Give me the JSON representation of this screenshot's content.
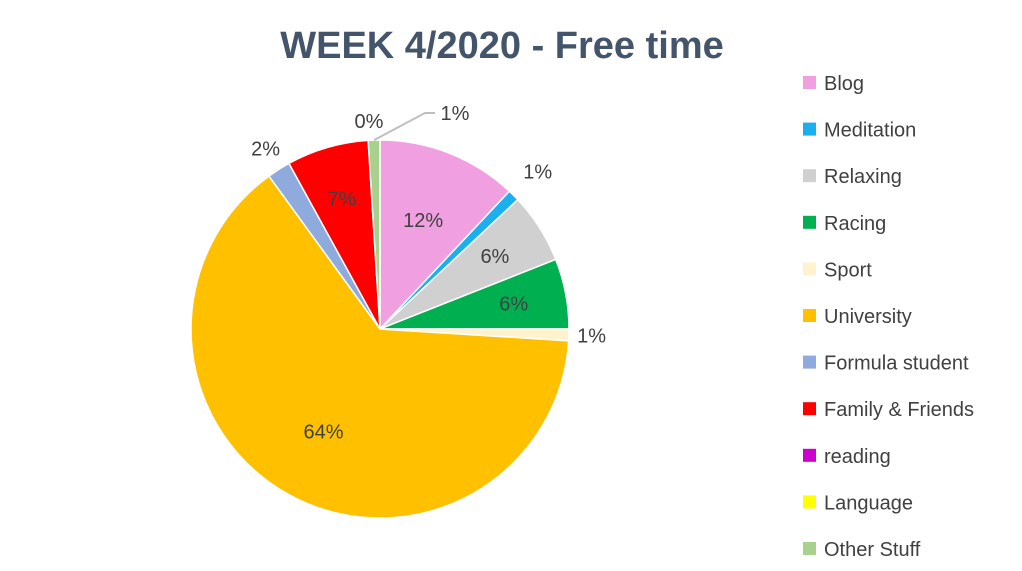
{
  "chart_data": {
    "type": "pie",
    "title": "WEEK 4/2020 - Free time",
    "slices": [
      {
        "name": "Blog",
        "value": 12,
        "label": "12%",
        "color": "#f0a0e0"
      },
      {
        "name": "Meditation",
        "value": 1,
        "label": "1%",
        "color": "#1ab0f0"
      },
      {
        "name": "Relaxing",
        "value": 6,
        "label": "6%",
        "color": "#d0d0d0"
      },
      {
        "name": "Racing",
        "value": 6,
        "label": "6%",
        "color": "#00b050"
      },
      {
        "name": "Sport",
        "value": 1,
        "label": "1%",
        "color": "#fff2cc"
      },
      {
        "name": "University",
        "value": 64,
        "label": "64%",
        "color": "#ffc000"
      },
      {
        "name": "Formula student",
        "value": 2,
        "label": "2%",
        "color": "#8faadc"
      },
      {
        "name": "Family & Friends",
        "value": 7,
        "label": "7%",
        "color": "#ff0000"
      },
      {
        "name": "reading",
        "value": 0,
        "label": "",
        "color": "#cc00cc"
      },
      {
        "name": "Language",
        "value": 0,
        "label": "0%",
        "color": "#ffff00"
      },
      {
        "name": "Other Stuff",
        "value": 1,
        "label": "1%",
        "color": "#a9d18e"
      }
    ],
    "legend_position": "right"
  }
}
